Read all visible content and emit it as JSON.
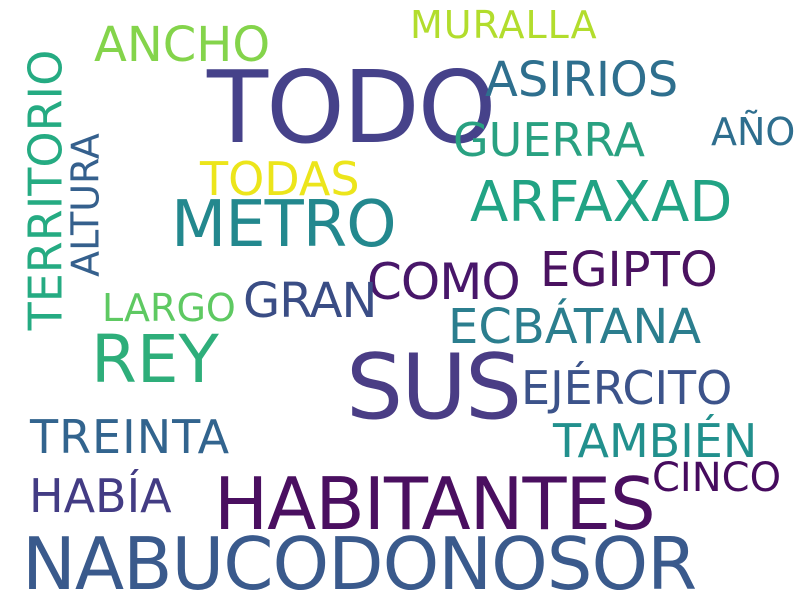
{
  "words": [
    {
      "text": "TODO",
      "color": "#46428a"
    },
    {
      "text": "SUS",
      "color": "#4a3d85"
    },
    {
      "text": "HABITANTES",
      "color": "#4a0f60"
    },
    {
      "text": "NABUCODONOSOR",
      "color": "#3a5a8c"
    },
    {
      "text": "METRO",
      "color": "#23888e"
    },
    {
      "text": "REY",
      "color": "#2eae7a"
    },
    {
      "text": "ARFAXAD",
      "color": "#21a384"
    },
    {
      "text": "EGIPTO",
      "color": "#4a1260"
    },
    {
      "text": "COMO",
      "color": "#48176a"
    },
    {
      "text": "GRAN",
      "color": "#3a4d85"
    },
    {
      "text": "ECBÁTANA",
      "color": "#2b7e8e"
    },
    {
      "text": "EJÉRCITO",
      "color": "#3c538a"
    },
    {
      "text": "TAMBIÉN",
      "color": "#22908d"
    },
    {
      "text": "TREINTA",
      "color": "#32648e"
    },
    {
      "text": "HABÍA",
      "color": "#433c84"
    },
    {
      "text": "CINCO",
      "color": "#460b5e"
    },
    {
      "text": "ASIRIOS",
      "color": "#2e6f8e"
    },
    {
      "text": "GUERRA",
      "color": "#29a181"
    },
    {
      "text": "AÑO",
      "color": "#2e6e8e"
    },
    {
      "text": "TODAS",
      "color": "#ece51b"
    },
    {
      "text": "ANCHO",
      "color": "#84d44b"
    },
    {
      "text": "MURALLA",
      "color": "#b2dd2d"
    },
    {
      "text": "LARGO",
      "color": "#5ec962"
    },
    {
      "text": "TERRITORIO",
      "color": "#25ab82"
    },
    {
      "text": "ALTURA",
      "color": "#35608d"
    }
  ]
}
